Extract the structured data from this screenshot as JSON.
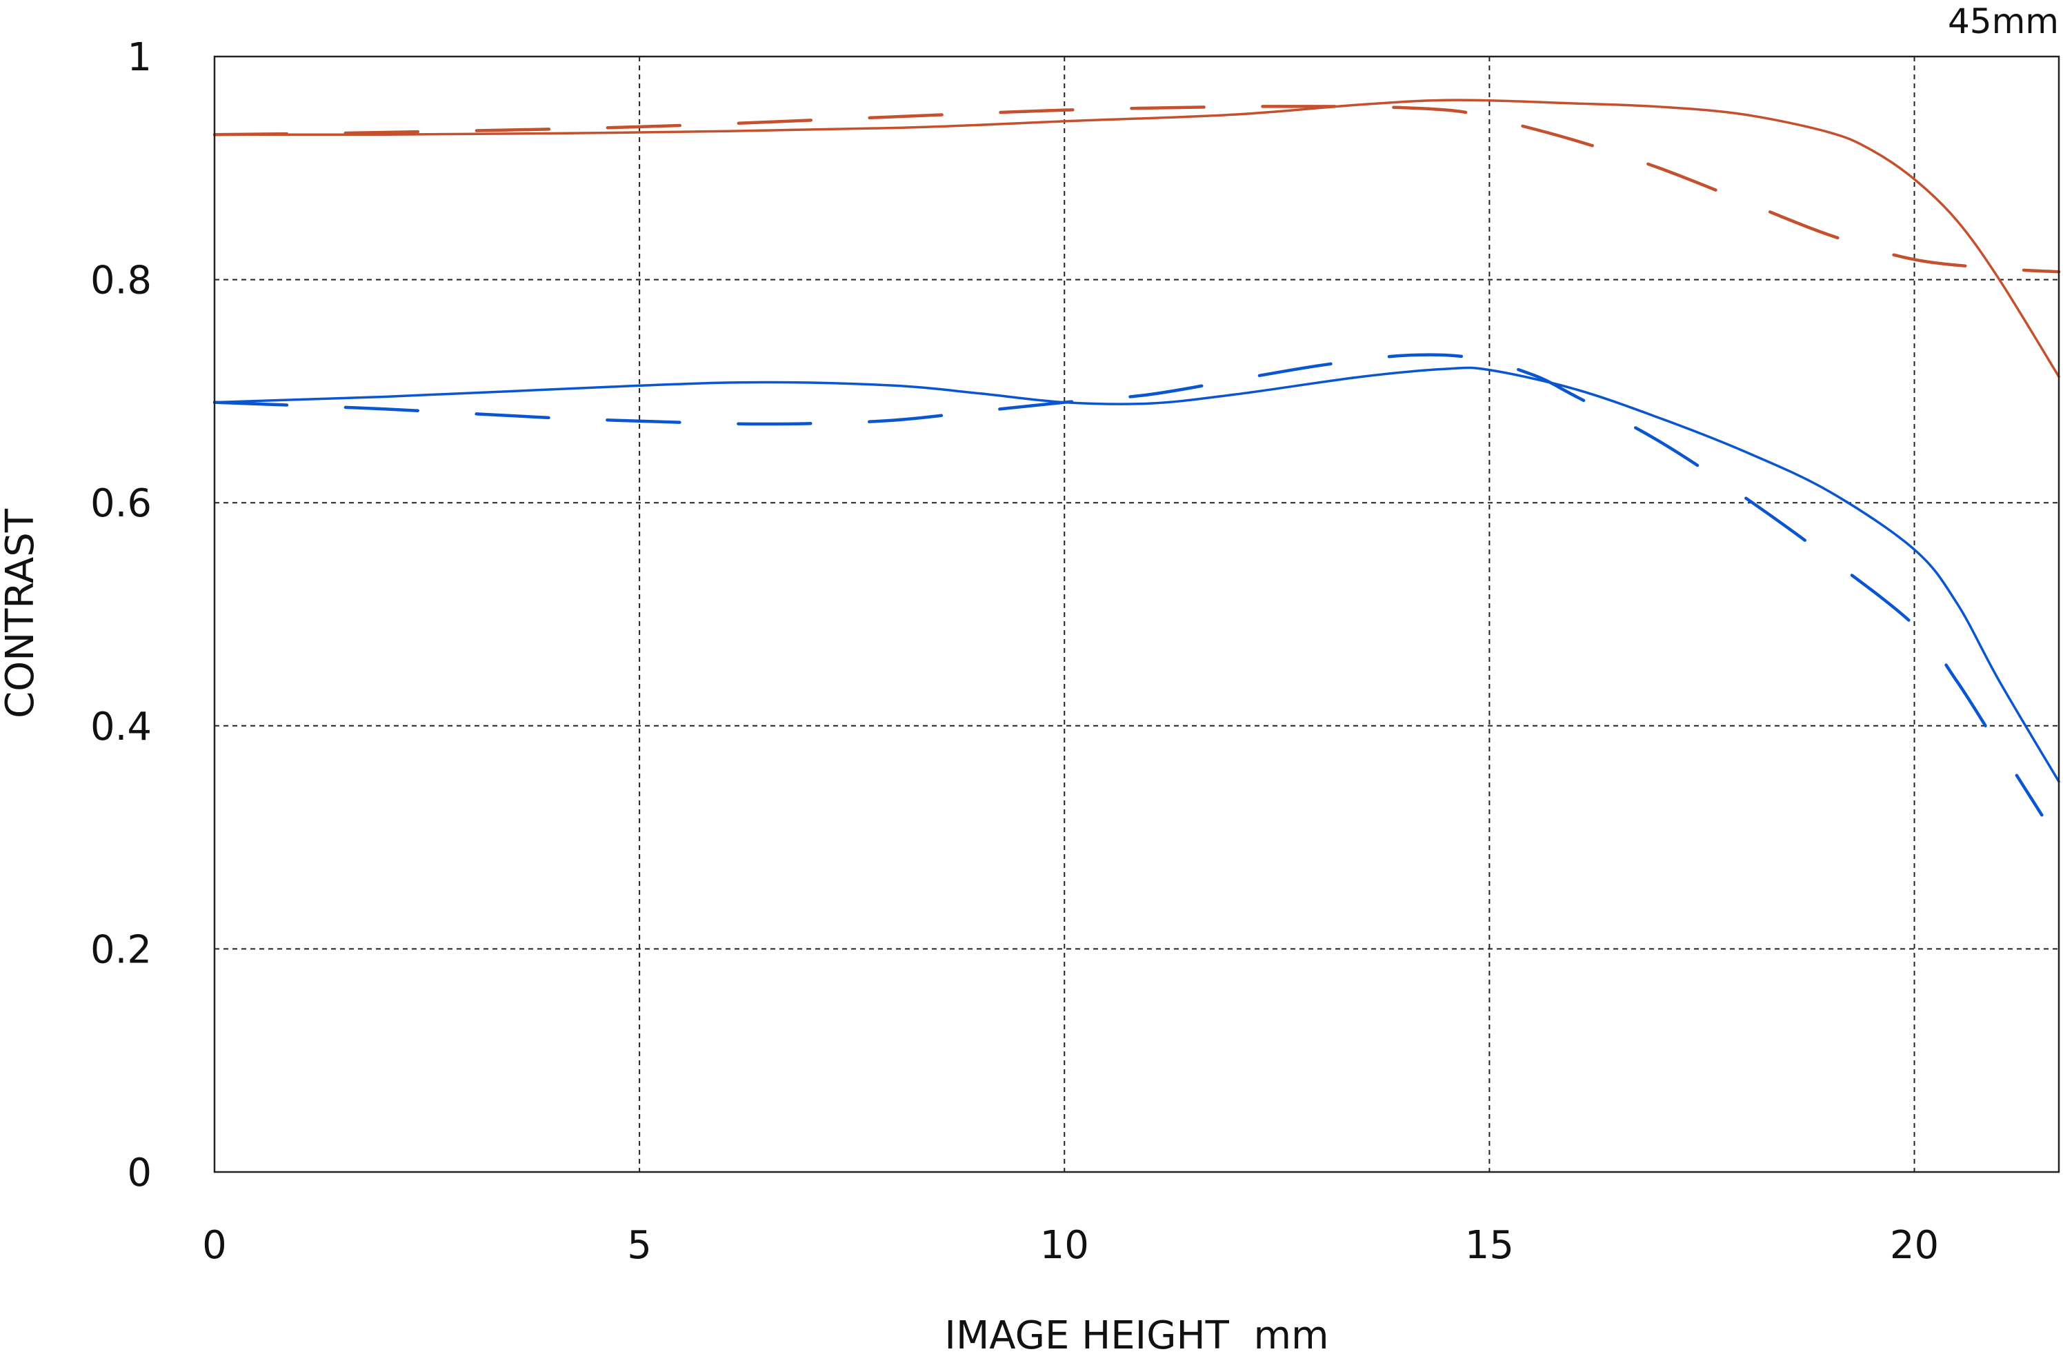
{
  "chart_data": {
    "type": "line",
    "title": "45mm",
    "xlabel": "IMAGE HEIGHT  mm",
    "ylabel": "CONTRAST",
    "xlim": [
      0,
      21.7
    ],
    "ylim": [
      0,
      1
    ],
    "xticks": [
      0,
      5,
      10,
      15,
      20
    ],
    "xtick_labels": [
      "0",
      "5",
      "10",
      "15",
      "20"
    ],
    "yticks": [
      0,
      0.2,
      0.4,
      0.6,
      0.8,
      1
    ],
    "ytick_labels": [
      "0",
      "0.2",
      "0.4",
      "0.6",
      "0.8",
      "1"
    ],
    "grid": true,
    "series": [
      {
        "color": "#c4502e",
        "style": "solid",
        "x": [
          0,
          2,
          5,
          8,
          10,
          12,
          13.5,
          14.6,
          16,
          17,
          18,
          19,
          19.5,
          20,
          20.5,
          21,
          21.7
        ],
        "y": [
          0.93,
          0.93,
          0.932,
          0.936,
          0.942,
          0.948,
          0.957,
          0.961,
          0.958,
          0.955,
          0.948,
          0.932,
          0.916,
          0.89,
          0.853,
          0.8,
          0.713
        ]
      },
      {
        "color": "#c4502e",
        "style": "dashed",
        "x": [
          0,
          2,
          5,
          8,
          10,
          12,
          13.5,
          14.5,
          15,
          16,
          17,
          18,
          19,
          20,
          21,
          21.7
        ],
        "y": [
          0.93,
          0.932,
          0.937,
          0.946,
          0.952,
          0.955,
          0.955,
          0.952,
          0.945,
          0.925,
          0.9,
          0.87,
          0.84,
          0.818,
          0.81,
          0.807
        ]
      },
      {
        "color": "#0a55d0",
        "style": "solid",
        "x": [
          0,
          2,
          5,
          6.5,
          8,
          9,
          10,
          11,
          12,
          13.5,
          14.5,
          15,
          16,
          17,
          18,
          19,
          20,
          20.5,
          21,
          21.7
        ],
        "y": [
          0.69,
          0.695,
          0.705,
          0.708,
          0.705,
          0.698,
          0.69,
          0.689,
          0.697,
          0.713,
          0.72,
          0.719,
          0.702,
          0.676,
          0.646,
          0.61,
          0.558,
          0.51,
          0.44,
          0.35
        ]
      },
      {
        "color": "#0a55d0",
        "style": "dashed",
        "x": [
          0,
          2,
          4,
          6,
          7,
          8,
          9,
          10,
          11,
          12,
          13,
          14,
          14.8,
          15.5,
          16,
          17,
          18,
          19,
          20,
          20.5,
          21,
          21.5
        ],
        "y": [
          0.69,
          0.684,
          0.676,
          0.671,
          0.671,
          0.674,
          0.682,
          0.69,
          0.697,
          0.71,
          0.723,
          0.732,
          0.73,
          0.715,
          0.696,
          0.655,
          0.605,
          0.55,
          0.49,
          0.44,
          0.38,
          0.32
        ]
      }
    ]
  }
}
